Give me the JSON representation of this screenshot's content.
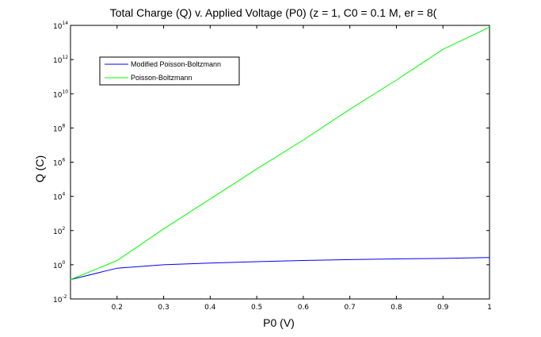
{
  "chart_data": {
    "type": "line",
    "title": "Total Charge (Q) v. Applied Voltage (P0) (z = 1, C0 = 0.1 M, er = 8(",
    "xlabel": "P0 (V)",
    "ylabel": "Q (C)",
    "xlim": [
      0.1,
      1.0
    ],
    "ylim_exponent": [
      -2,
      14
    ],
    "yscale": "log",
    "x_ticks": [
      "0.2",
      "0.3",
      "0.4",
      "0.5",
      "0.6",
      "0.7",
      "0.8",
      "0.9",
      "1"
    ],
    "y_ticks": [
      {
        "base": "10",
        "exp": "-2"
      },
      {
        "base": "10",
        "exp": "0"
      },
      {
        "base": "10",
        "exp": "2"
      },
      {
        "base": "10",
        "exp": "4"
      },
      {
        "base": "10",
        "exp": "6"
      },
      {
        "base": "10",
        "exp": "8"
      },
      {
        "base": "10",
        "exp": "10"
      },
      {
        "base": "10",
        "exp": "12"
      },
      {
        "base": "10",
        "exp": "14"
      }
    ],
    "legend_position": "top-left",
    "series": [
      {
        "name": "Modified Poisson-Boltzmann",
        "color": "#0000ff",
        "x": [
          0.1,
          0.2,
          0.3,
          0.4,
          0.5,
          0.6,
          0.7,
          0.8,
          0.9,
          1.0
        ],
        "log10_y": [
          -0.87,
          -0.2,
          0.0,
          0.1,
          0.18,
          0.25,
          0.3,
          0.34,
          0.37,
          0.42
        ]
      },
      {
        "name": "Poisson-Boltzmann",
        "color": "#00ff00",
        "x": [
          0.1,
          0.2,
          0.3,
          0.4,
          0.5,
          0.6,
          0.7,
          0.8,
          0.9,
          1.0
        ],
        "log10_y": [
          -0.87,
          0.25,
          2.1,
          3.85,
          5.6,
          7.3,
          9.1,
          10.8,
          12.6,
          13.9
        ]
      }
    ]
  }
}
